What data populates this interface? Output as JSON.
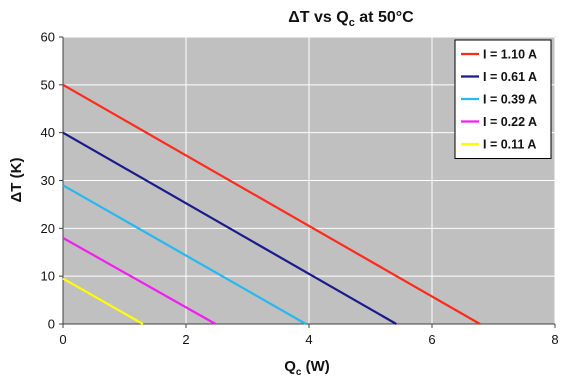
{
  "chart_data": {
    "type": "line",
    "title": {
      "main": "ΔT vs Q",
      "sub": "c",
      "rest": " at 50°C"
    },
    "xlabel": {
      "main": "Q",
      "sub": "c",
      "rest": " (W)"
    },
    "ylabel": "ΔT (K)",
    "xlim": [
      0,
      8
    ],
    "ylim": [
      0,
      60
    ],
    "x_ticks": [
      0,
      2,
      4,
      6,
      8
    ],
    "y_ticks": [
      0,
      10,
      20,
      30,
      40,
      50,
      60
    ],
    "grid": true,
    "legend_position": "top-right",
    "plot_background": "#c0c0c0",
    "series": [
      {
        "name": "I = 1.10 A",
        "color": "#ff2a1a",
        "x": [
          0,
          6.78
        ],
        "y": [
          50,
          0
        ]
      },
      {
        "name": "I = 0.61 A",
        "color": "#1a1a8c",
        "x": [
          0,
          5.42
        ],
        "y": [
          40,
          0
        ]
      },
      {
        "name": "I = 0.39 A",
        "color": "#26b8f0",
        "x": [
          0,
          3.95
        ],
        "y": [
          29,
          0
        ]
      },
      {
        "name": "I = 0.22 A",
        "color": "#f01ef0",
        "x": [
          0,
          2.48
        ],
        "y": [
          18,
          0
        ]
      },
      {
        "name": "I = 0.11 A",
        "color": "#ffff00",
        "x": [
          0,
          1.3
        ],
        "y": [
          9.5,
          0
        ]
      }
    ]
  }
}
